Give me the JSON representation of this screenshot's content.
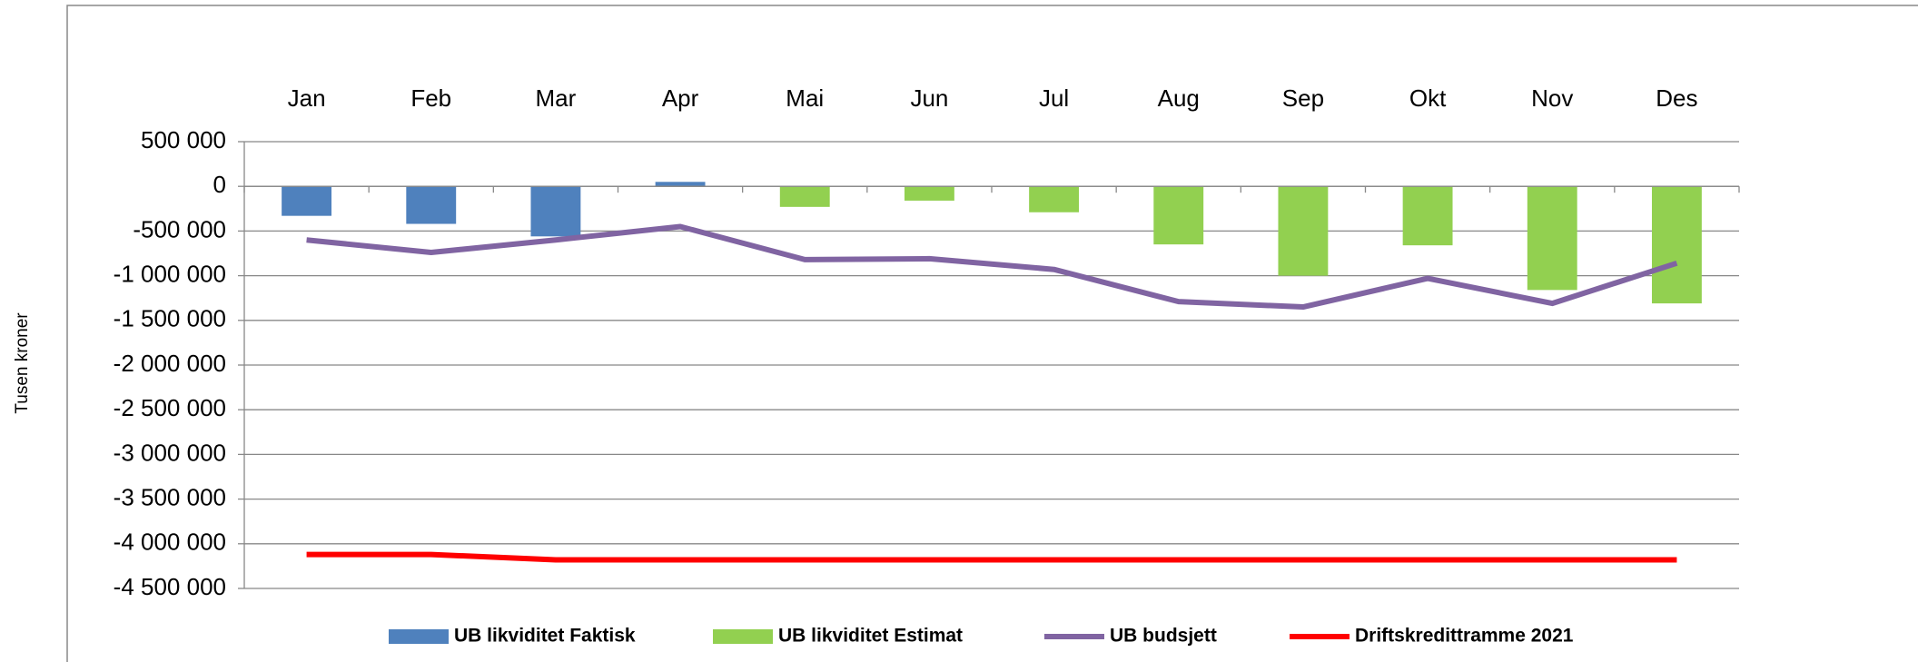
{
  "chart_data": {
    "type": "combo",
    "y_label": "Tusen kroner",
    "categories": [
      "Jan",
      "Feb",
      "Mar",
      "Apr",
      "Mai",
      "Jun",
      "Jul",
      "Aug",
      "Sep",
      "Okt",
      "Nov",
      "Des"
    ],
    "series": [
      {
        "name": "UB likviditet Faktisk",
        "type": "bar",
        "color": "#4f81bd",
        "values": [
          -330000,
          -420000,
          -560000,
          50000,
          null,
          null,
          null,
          null,
          null,
          null,
          null,
          null
        ]
      },
      {
        "name": "UB likviditet Estimat",
        "type": "bar",
        "color": "#92d050",
        "values": [
          null,
          null,
          null,
          null,
          -230000,
          -160000,
          -290000,
          -650000,
          -1000000,
          -660000,
          -1160000,
          -1310000
        ]
      },
      {
        "name": "UB budsjett",
        "type": "line",
        "color": "#8064a2",
        "values": [
          -600000,
          -740000,
          -600000,
          -450000,
          -820000,
          -810000,
          -930000,
          -1290000,
          -1350000,
          -1030000,
          -1310000,
          -860000
        ]
      },
      {
        "name": "Driftskredittramme 2021",
        "type": "line",
        "color": "#ff0000",
        "values": [
          -4120000,
          -4120000,
          -4180000,
          -4180000,
          -4180000,
          -4180000,
          -4180000,
          -4180000,
          -4180000,
          -4180000,
          -4180000,
          -4180000
        ]
      }
    ],
    "ylim": [
      -4500000,
      500000
    ],
    "yticks": [
      {
        "value": 500000,
        "label": "500 000"
      },
      0,
      {
        "value": -500000,
        "label": "-500 000"
      },
      {
        "value": -1000000,
        "label": "-1 000 000"
      },
      {
        "value": -1500000,
        "label": "-1 500 000"
      },
      {
        "value": -2000000,
        "label": "-2 000 000"
      },
      {
        "value": -2500000,
        "label": "-2 500 000"
      },
      {
        "value": -3000000,
        "label": "-3 000 000"
      },
      {
        "value": -3500000,
        "label": "-3 500 000"
      },
      {
        "value": -4000000,
        "label": "-4 000 000"
      },
      {
        "value": -4500000,
        "label": "-4 500 000"
      }
    ],
    "grid": true
  }
}
